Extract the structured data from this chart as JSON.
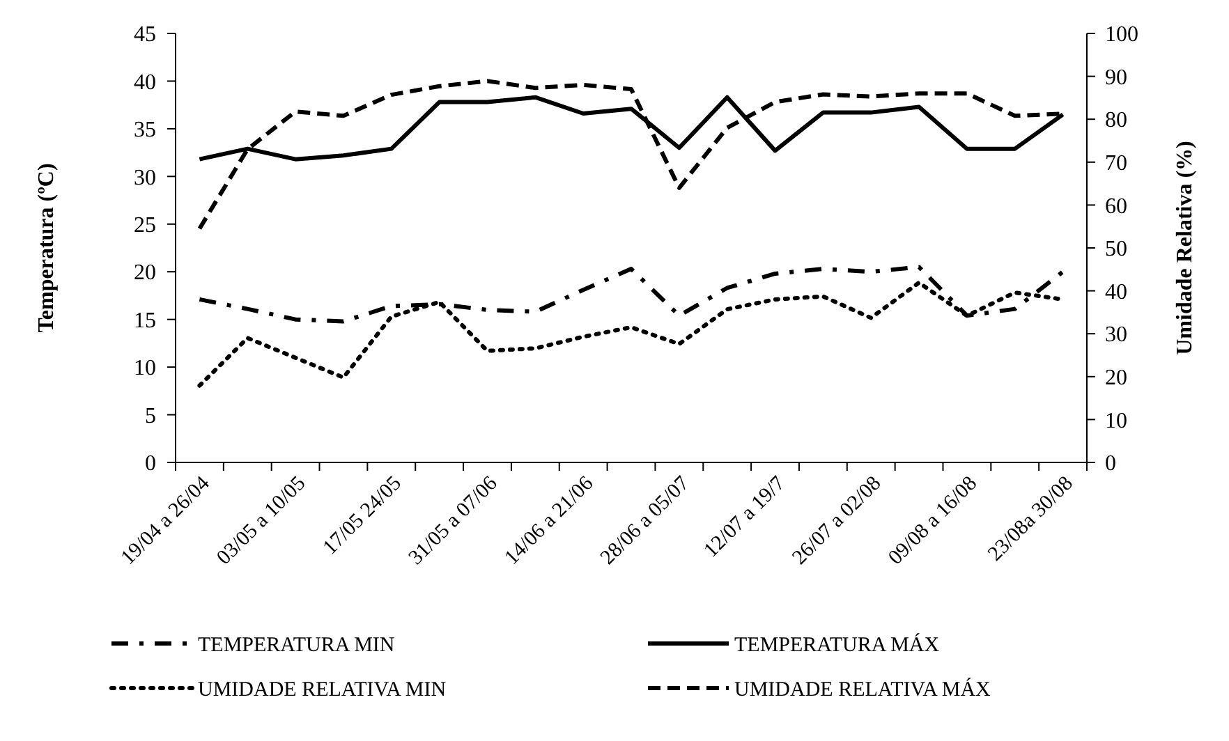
{
  "chart_data": {
    "type": "line",
    "ylabel": "Temperatura (ºC)",
    "y2label": "Umidade  Relativa (%)",
    "categories": [
      "19/04 a 26/04",
      null,
      "03/05 a 10/05",
      null,
      "17/05 24/05",
      null,
      "31/05 a 07/06",
      null,
      "14/06 a 21/06",
      null,
      "28/06 a 05/07",
      null,
      "12/07 a 19/7",
      null,
      "26/07 a 02/08",
      null,
      "09/08 a 16/08",
      null,
      "23/08a 30/08"
    ],
    "ylim": [
      0,
      45
    ],
    "yticks": [
      0,
      5,
      10,
      15,
      20,
      25,
      30,
      35,
      40,
      45
    ],
    "y2lim": [
      0,
      100
    ],
    "y2ticks": [
      0,
      10,
      20,
      30,
      40,
      50,
      60,
      70,
      80,
      90,
      100
    ],
    "grid": false,
    "legend": "bottom",
    "series": [
      {
        "name": "TEMPERATURA MIN",
        "color": "#000000",
        "line_style": "dashdot",
        "values": [
          17.1,
          16.1,
          15.0,
          14.8,
          16.4,
          16.6,
          16.0,
          15.8,
          18.1,
          20.3,
          15.4,
          18.3,
          19.8,
          20.3,
          20.0,
          20.5,
          15.4,
          16.1,
          20.0
        ]
      },
      {
        "name": "TEMPERATURA MÁX",
        "color": "#000000",
        "line_style": "solid",
        "values": [
          31.8,
          32.9,
          31.8,
          32.2,
          32.9,
          37.8,
          37.8,
          38.3,
          36.6,
          37.1,
          33.0,
          38.3,
          32.7,
          36.7,
          36.7,
          37.3,
          32.9,
          32.9,
          36.5
        ]
      },
      {
        "name": "UMIDADE  RELATIVA MIN",
        "color": "#000000",
        "line_style": "dotted",
        "axis": "y2",
        "values": [
          17.9,
          29,
          24.4,
          19.8,
          34,
          37.4,
          26,
          26.6,
          29.3,
          31.5,
          27.6,
          35.7,
          38,
          38.7,
          33.7,
          41.9,
          34.2,
          39.6,
          38
        ]
      },
      {
        "name": "UMIDADE  RELATIVA MÁX",
        "color": "#000000",
        "line_style": "dashed",
        "axis": "y2",
        "values": [
          54.5,
          73,
          81.8,
          80.8,
          85.7,
          87.7,
          88.9,
          87.3,
          88,
          87,
          64,
          78,
          84,
          85.8,
          85.3,
          86,
          86,
          80.8,
          81.3
        ]
      }
    ]
  }
}
